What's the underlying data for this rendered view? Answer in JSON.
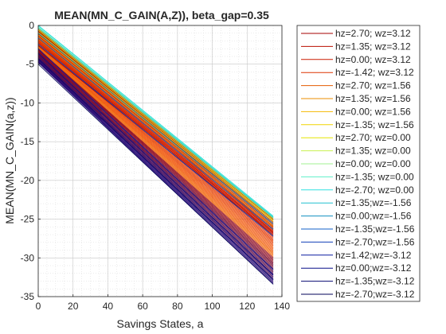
{
  "chart_data": {
    "type": "line",
    "title": "MEAN(MN_C_GAIN(A,Z)), beta_gap=0.35",
    "xlabel": "Savings States, a",
    "ylabel": "MEAN(MN_C_GAIN(a,z))",
    "xlim": [
      0,
      140
    ],
    "ylim": [
      -35,
      0
    ],
    "xticks": [
      "0",
      "20",
      "40",
      "60",
      "80",
      "100",
      "120",
      "140"
    ],
    "yticks": [
      "0",
      "-5",
      "-10",
      "-15",
      "-20",
      "-25",
      "-30",
      "-35"
    ],
    "grid": true,
    "minor_grid": true,
    "legend_position": "outside-right",
    "x_start": 0,
    "x_end": 135,
    "series": [
      {
        "name": "hz=2.70; wz=3.12",
        "color": "#a50000",
        "y_start": -2.6,
        "y_end": -27.0
      },
      {
        "name": "hz=1.35; wz=3.12",
        "color": "#ba0e00",
        "y_start": -2.4,
        "y_end": -26.8
      },
      {
        "name": "hz=0.00; wz=3.12",
        "color": "#cc1a00",
        "y_start": -2.2,
        "y_end": -26.6
      },
      {
        "name": "hz=-1.42; wz=3.12",
        "color": "#dd3300",
        "y_start": -2.0,
        "y_end": -26.4
      },
      {
        "name": "hz=2.70; wz=1.56",
        "color": "#e55c00",
        "y_start": -1.8,
        "y_end": -26.1
      },
      {
        "name": "hz=1.35; wz=1.56",
        "color": "#ee8c00",
        "y_start": -1.5,
        "y_end": -25.9
      },
      {
        "name": "hz=0.00; wz=1.56",
        "color": "#f5b800",
        "y_start": -1.2,
        "y_end": -25.6
      },
      {
        "name": "hz=-1.35; wz=1.56",
        "color": "#f0d400",
        "y_start": -0.9,
        "y_end": -25.3
      },
      {
        "name": "hz=2.70; wz=0.00",
        "color": "#e6e600",
        "y_start": -0.6,
        "y_end": -25.1
      },
      {
        "name": "hz=1.35; wz=0.00",
        "color": "#c8f050",
        "y_start": -0.4,
        "y_end": -24.9
      },
      {
        "name": "hz=0.00; wz=0.00",
        "color": "#a0f090",
        "y_start": -0.25,
        "y_end": -24.8
      },
      {
        "name": "hz=-1.35; wz=0.00",
        "color": "#5ef0c8",
        "y_start": -0.1,
        "y_end": -24.7
      },
      {
        "name": "hz=-2.70; wz=0.00",
        "color": "#30e0e0",
        "y_start": 0.0,
        "y_end": -24.6
      },
      {
        "name": "hz=1.35;wz=-1.56",
        "color": "#20c0d0",
        "y_start": -0.3,
        "y_end": -24.8
      },
      {
        "name": "hz=0.00;wz=-1.56",
        "color": "#1090c0",
        "y_start": -1.0,
        "y_end": -25.6
      },
      {
        "name": "hz=-1.35;wz=-1.56",
        "color": "#1060c8",
        "y_start": -1.6,
        "y_end": -26.3
      },
      {
        "name": "hz=-2.70;wz=-1.56",
        "color": "#1040b8",
        "y_start": -2.4,
        "y_end": -27.2
      },
      {
        "name": "hz=1.42;wz=-3.12",
        "color": "#0a1aa0",
        "y_start": -3.0,
        "y_end": -31.5
      },
      {
        "name": "hz=0.00;wz=-3.12",
        "color": "#080e88",
        "y_start": -3.6,
        "y_end": -32.2
      },
      {
        "name": "hz=-1.35;wz=-3.12",
        "color": "#050670",
        "y_start": -4.3,
        "y_end": -32.8
      },
      {
        "name": "hz=-2.70;wz=-3.12",
        "color": "#03035a",
        "y_start": -5.0,
        "y_end": -33.4
      }
    ],
    "band_colors": [
      "#a50000",
      "#c01000",
      "#d42000",
      "#e03000",
      "#e84000",
      "#f05000",
      "#f06000",
      "#8a0018",
      "#70002a",
      "#550040",
      "#3a0058",
      "#200070"
    ]
  }
}
